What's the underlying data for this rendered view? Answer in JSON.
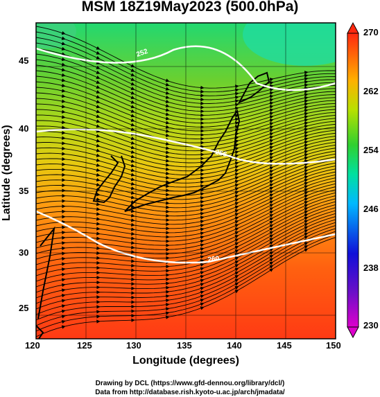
{
  "title": "MSM 18Z19May2023 (500.0hPa)",
  "axes": {
    "xlabel": "Longitude (degrees)",
    "ylabel": "Latitude  (degrees)",
    "xticks": [
      "120",
      "125",
      "130",
      "135",
      "140",
      "145",
      "150"
    ],
    "yticks": [
      "45",
      "40",
      "35",
      "30",
      "25"
    ],
    "xlim": [
      120,
      150
    ],
    "ylim": [
      22.4,
      47.6
    ]
  },
  "colorbar": {
    "ticks": [
      "270",
      "262",
      "254",
      "246",
      "238",
      "230"
    ],
    "range": [
      230,
      270
    ],
    "colors": [
      "#cc00cc",
      "#2020dd",
      "#00c8f0",
      "#10d060",
      "#c8d800",
      "#ff8800",
      "#ff2a1a"
    ]
  },
  "contours": {
    "labels": [
      "252",
      "256",
      "260"
    ],
    "color": "#ffffff"
  },
  "credits": {
    "line1": "Drawing by DCL (https://www.gfd-dennou.org/library/dcl/)",
    "line2": "Data from http://database.rish.kyoto-u.ac.jp/arch/jmadata/"
  }
}
